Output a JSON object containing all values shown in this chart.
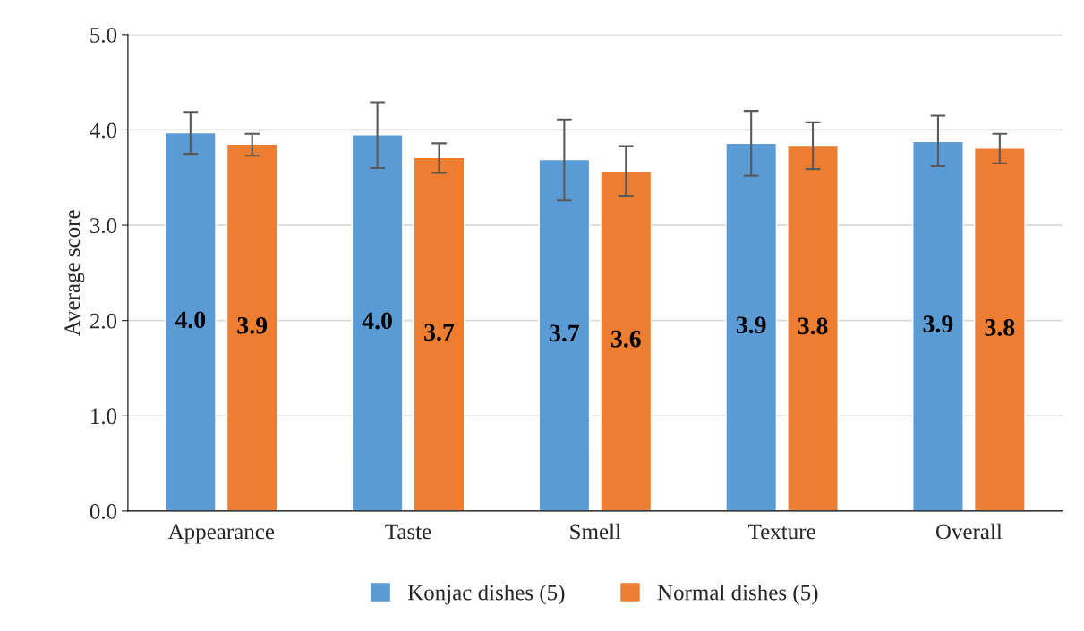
{
  "chart_data": {
    "type": "bar",
    "ylabel": "Average score",
    "categories": [
      "Appearance",
      "Taste",
      "Smell",
      "Texture",
      "Overall"
    ],
    "series": [
      {
        "name": "Konjac dishes (5)",
        "color": "#5b9bd5",
        "values": [
          3.97,
          3.95,
          3.69,
          3.86,
          3.88
        ],
        "errors": [
          [
            3.75,
            4.19
          ],
          [
            3.6,
            4.29
          ],
          [
            3.26,
            4.11
          ],
          [
            3.52,
            4.2
          ],
          [
            3.62,
            4.15
          ]
        ],
        "value_labels": [
          "4.0",
          "4.0",
          "3.7",
          "3.9",
          "3.9"
        ]
      },
      {
        "name": "Normal dishes (5)",
        "color": "#ed7d31",
        "values": [
          3.85,
          3.71,
          3.57,
          3.84,
          3.81
        ],
        "errors": [
          [
            3.73,
            3.96
          ],
          [
            3.55,
            3.86
          ],
          [
            3.31,
            3.83
          ],
          [
            3.59,
            4.08
          ],
          [
            3.65,
            3.96
          ]
        ],
        "value_labels": [
          "3.9",
          "3.7",
          "3.6",
          "3.8",
          "3.8"
        ]
      }
    ],
    "ylim": [
      0,
      5
    ],
    "yticks": [
      {
        "value": 0,
        "label": "0.0"
      },
      {
        "value": 1,
        "label": "1.0"
      },
      {
        "value": 2,
        "label": "2.0"
      },
      {
        "value": 3,
        "label": "3.0"
      },
      {
        "value": 4,
        "label": "4.0"
      },
      {
        "value": 5,
        "label": "5.0"
      }
    ],
    "grid": "y",
    "legend": "bottom"
  }
}
